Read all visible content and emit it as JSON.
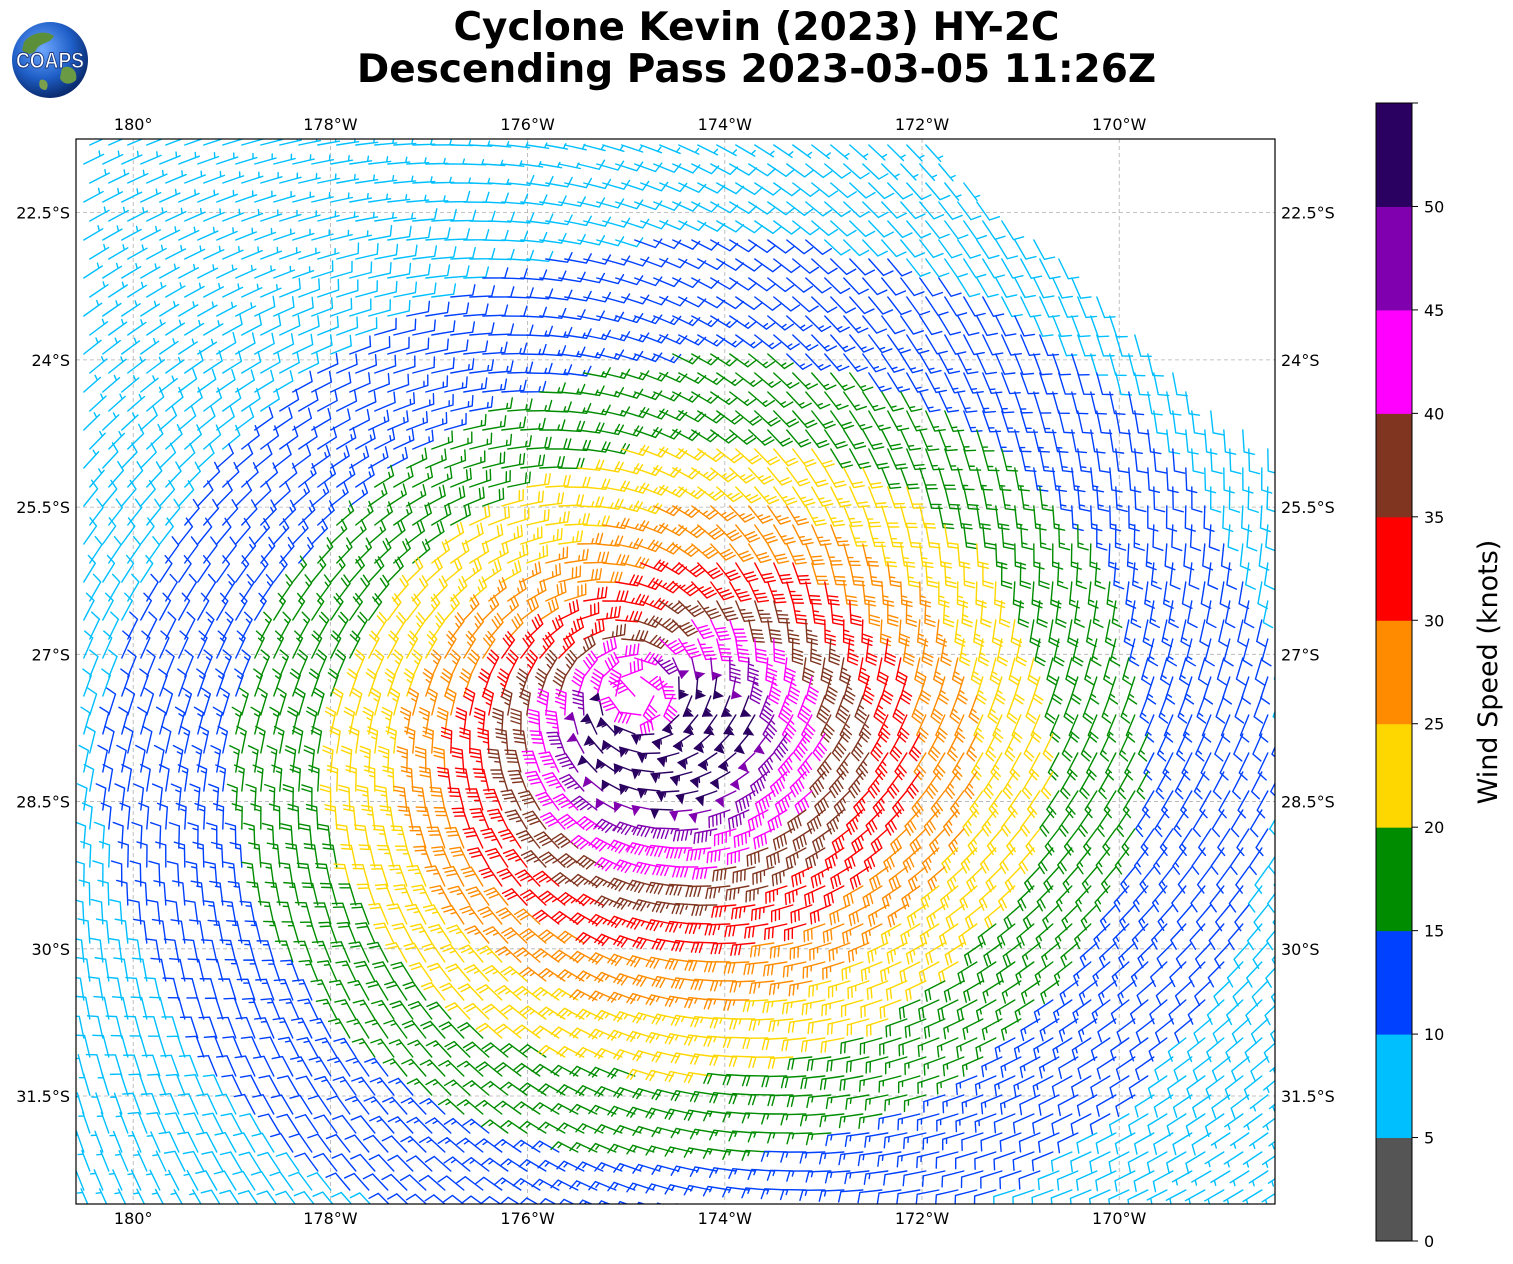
{
  "header": {
    "title_line1": "Cyclone Kevin (2023) HY-2C",
    "title_line2": "Descending Pass 2023-03-05 11:26Z",
    "logo_text": "COAPS"
  },
  "map": {
    "lon_labels": [
      "180°",
      "178°W",
      "176°W",
      "174°W",
      "172°W",
      "170°W"
    ],
    "lon_values": [
      -180,
      -178,
      -176,
      -174,
      -172,
      -170
    ],
    "lat_labels": [
      "22.5°S",
      "24°S",
      "25.5°S",
      "27°S",
      "28.5°S",
      "30°S",
      "31.5°S"
    ],
    "lat_values": [
      -22.5,
      -24,
      -25.5,
      -27,
      -28.5,
      -30,
      -31.5
    ],
    "extent": {
      "lon_min": -180.58,
      "lon_max": -168.42,
      "lat_min": -32.6,
      "lat_max": -21.75
    },
    "grid": true,
    "storm_center": {
      "lon": -174.9,
      "lat": -27.4
    },
    "swath_edge": "north-east"
  },
  "colorbar": {
    "label": "Wind Speed (knots)",
    "ticks": [
      "0",
      "5",
      "10",
      "15",
      "20",
      "25",
      "30",
      "35",
      "40",
      "45",
      "50"
    ],
    "bins": [
      {
        "min": 0,
        "max": 5,
        "color": "#555555"
      },
      {
        "min": 5,
        "max": 10,
        "color": "#00bfff"
      },
      {
        "min": 10,
        "max": 15,
        "color": "#0040ff"
      },
      {
        "min": 15,
        "max": 20,
        "color": "#008c00"
      },
      {
        "min": 20,
        "max": 25,
        "color": "#ffd700"
      },
      {
        "min": 25,
        "max": 30,
        "color": "#ff8c00"
      },
      {
        "min": 30,
        "max": 35,
        "color": "#ff0000"
      },
      {
        "min": 35,
        "max": 40,
        "color": "#803520"
      },
      {
        "min": 40,
        "max": 45,
        "color": "#ff00ff"
      },
      {
        "min": 45,
        "max": 50,
        "color": "#8000b0"
      },
      {
        "min": 50,
        "max": 55,
        "color": "#2a0060"
      }
    ]
  }
}
